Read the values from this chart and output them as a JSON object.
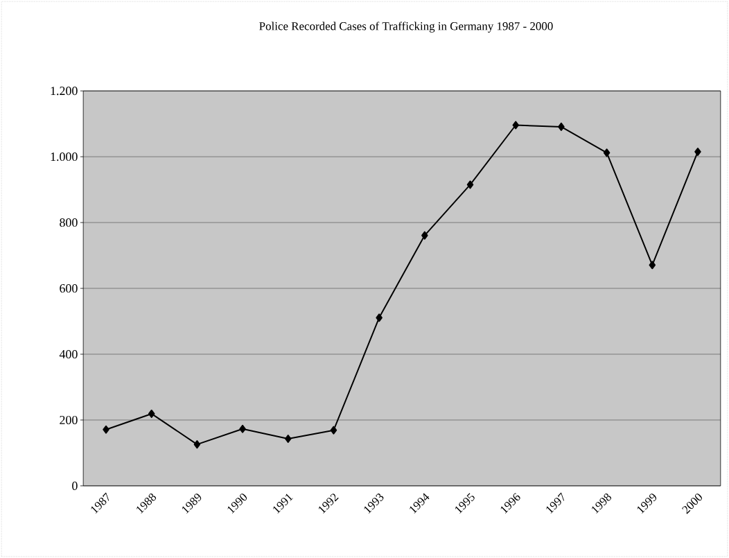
{
  "chart_data": {
    "type": "line",
    "title": "Police Recorded Cases of Trafficking in Germany 1987 - 2000",
    "categories": [
      "1987",
      "1988",
      "1989",
      "1990",
      "1991",
      "1992",
      "1993",
      "1994",
      "1995",
      "1996",
      "1997",
      "1998",
      "1999",
      "2000"
    ],
    "values": [
      171,
      219,
      126,
      173,
      143,
      169,
      511,
      761,
      915,
      1096,
      1091,
      1012,
      671,
      1015
    ],
    "color": "#000000",
    "marker": "diamond",
    "line_style": "solid",
    "grid": "y",
    "ylim": [
      0,
      1200
    ],
    "yticks": [
      0,
      200,
      400,
      600,
      800,
      {
        "value": 1000,
        "label": "1.000"
      },
      {
        "value": 1200,
        "label": "1.200"
      }
    ]
  }
}
